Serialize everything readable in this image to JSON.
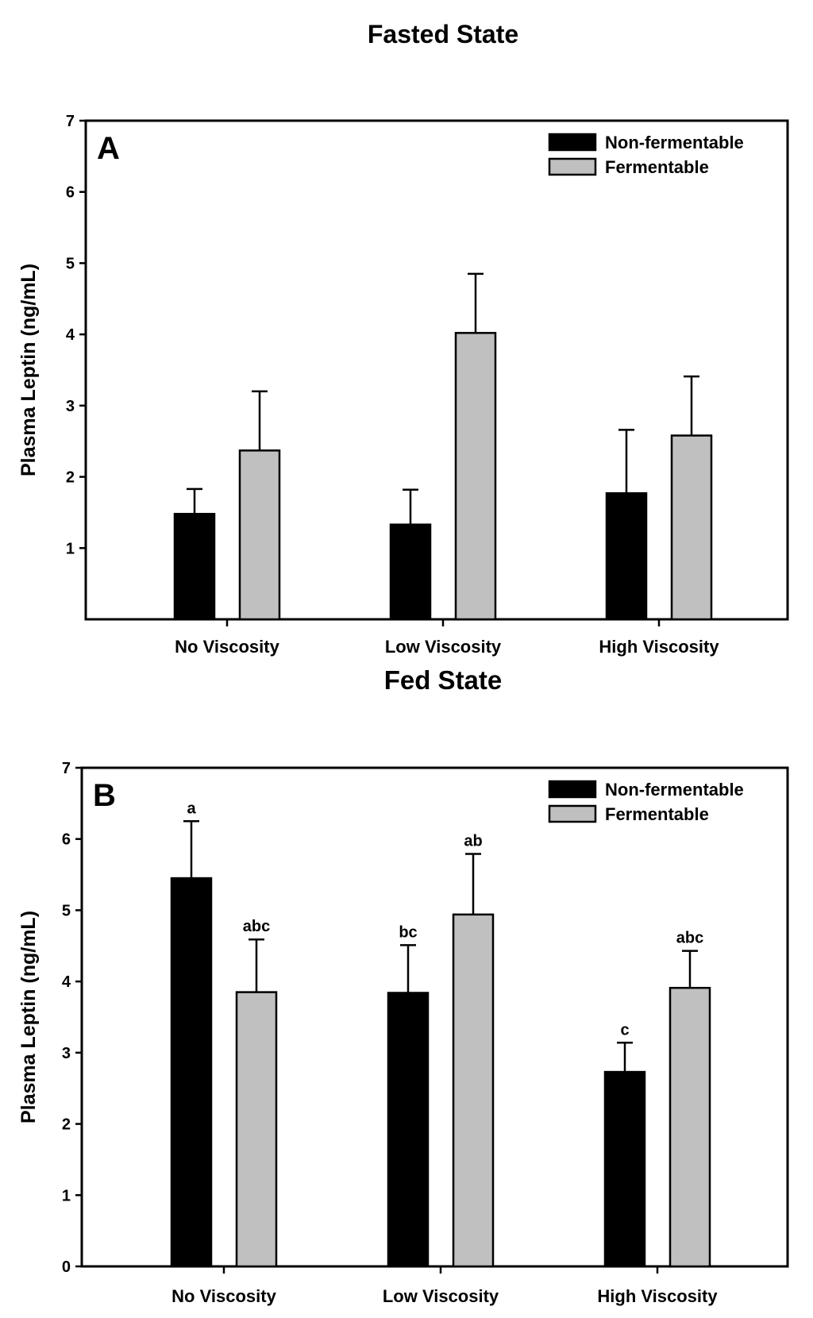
{
  "chart_data": [
    {
      "type": "bar",
      "title": "Fasted State",
      "panel_label": "A",
      "xlabel": "",
      "ylabel": "Plasma Leptin (ng/mL)",
      "ylim": [
        0,
        7
      ],
      "yticks": [
        "1",
        "2",
        "3",
        "4",
        "5",
        "6",
        "7"
      ],
      "categories": [
        "No Viscosity",
        "Low Viscosity",
        "High Viscosity"
      ],
      "series": [
        {
          "name": "Non-fermentable",
          "color": "#000000",
          "values": [
            1.48,
            1.33,
            1.77
          ],
          "errors": [
            0.35,
            0.49,
            0.89
          ],
          "labels": [
            "",
            "",
            ""
          ]
        },
        {
          "name": "Fermentable",
          "color": "#c0c0c0",
          "values": [
            2.37,
            4.02,
            2.58
          ],
          "errors": [
            0.83,
            0.83,
            0.83
          ],
          "labels": [
            "",
            "",
            ""
          ]
        }
      ],
      "legend": "top-right",
      "grid": false
    },
    {
      "type": "bar",
      "title": "Fed State",
      "panel_label": "B",
      "xlabel": "",
      "ylabel": "Plasma Leptin (ng/mL)",
      "ylim": [
        0,
        7
      ],
      "yticks": [
        "0",
        "1",
        "2",
        "3",
        "4",
        "5",
        "6",
        "7"
      ],
      "categories": [
        "No Viscosity",
        "Low Viscosity",
        "High Viscosity"
      ],
      "series": [
        {
          "name": "Non-fermentable",
          "color": "#000000",
          "values": [
            5.45,
            3.84,
            2.73
          ],
          "errors": [
            0.8,
            0.67,
            0.41
          ],
          "labels": [
            "a",
            "bc",
            "c"
          ]
        },
        {
          "name": "Fermentable",
          "color": "#c0c0c0",
          "values": [
            3.85,
            4.94,
            3.91
          ],
          "errors": [
            0.74,
            0.85,
            0.52
          ],
          "labels": [
            "abc",
            "ab",
            "abc"
          ]
        }
      ],
      "legend": "top-right",
      "grid": false
    }
  ]
}
